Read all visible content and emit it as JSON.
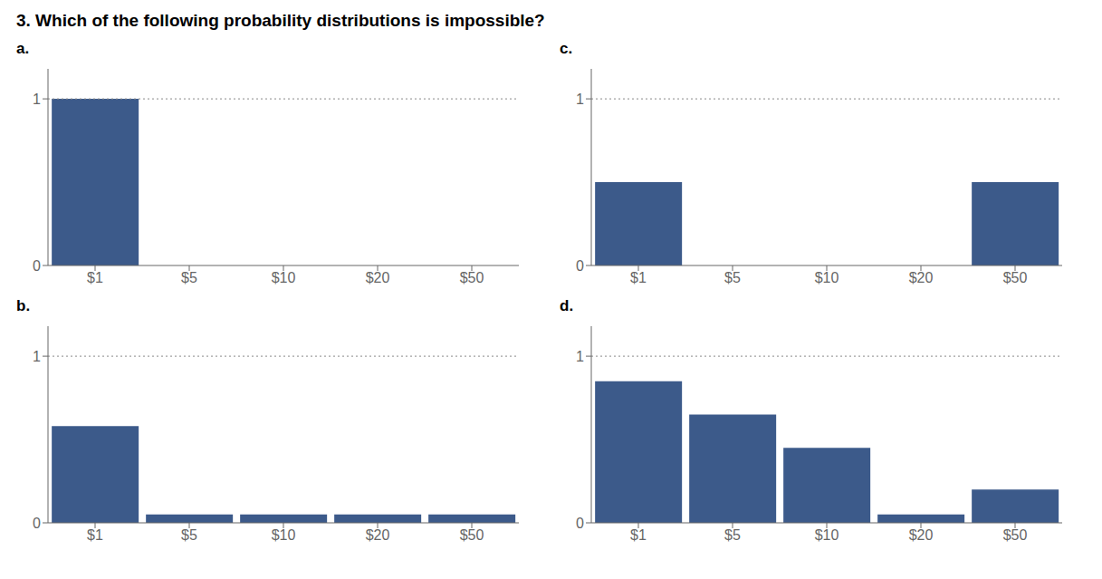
{
  "title": "3.   Which of the following probability distributions is impossible?",
  "chart_data": [
    {
      "type": "bar",
      "title": "a.",
      "categories": [
        "$1",
        "$5",
        "$10",
        "$20",
        "$50"
      ],
      "values": [
        1.0,
        0.0,
        0.0,
        0.0,
        0.0
      ],
      "color": "#3C5A8A",
      "ylim": [
        0,
        1.18
      ],
      "yticks": [
        0,
        1
      ],
      "reference_line": 1.0,
      "grid": false
    },
    {
      "type": "bar",
      "title": "c.",
      "categories": [
        "$1",
        "$5",
        "$10",
        "$20",
        "$50"
      ],
      "values": [
        0.5,
        0.0,
        0.0,
        0.0,
        0.5
      ],
      "color": "#3C5A8A",
      "ylim": [
        0,
        1.18
      ],
      "yticks": [
        0,
        1
      ],
      "reference_line": 1.0,
      "grid": false
    },
    {
      "type": "bar",
      "title": "b.",
      "categories": [
        "$1",
        "$5",
        "$10",
        "$20",
        "$50"
      ],
      "values": [
        0.58,
        0.05,
        0.05,
        0.05,
        0.05
      ],
      "color": "#3C5A8A",
      "ylim": [
        0,
        1.18
      ],
      "yticks": [
        0,
        1
      ],
      "reference_line": 1.0,
      "grid": false
    },
    {
      "type": "bar",
      "title": "d.",
      "categories": [
        "$1",
        "$5",
        "$10",
        "$20",
        "$50"
      ],
      "values": [
        0.85,
        0.65,
        0.45,
        0.05,
        0.2
      ],
      "color": "#3C5A8A",
      "ylim": [
        0,
        1.18
      ],
      "yticks": [
        0,
        1
      ],
      "reference_line": 1.0,
      "grid": false
    }
  ]
}
